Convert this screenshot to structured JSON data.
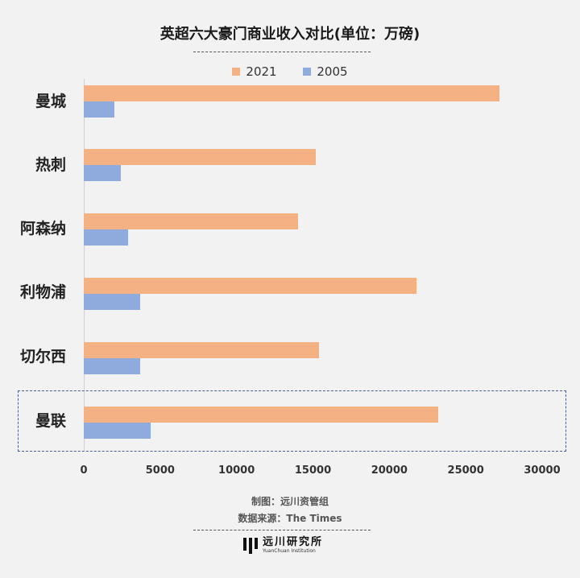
{
  "chart_data": {
    "type": "bar",
    "orientation": "horizontal",
    "title": "英超六大豪门商业收入对比(单位：万磅)",
    "categories": [
      "曼城",
      "热刺",
      "阿森纳",
      "利物浦",
      "切尔西",
      "曼联"
    ],
    "series": [
      {
        "name": "2021",
        "color": "#f4b183",
        "values": [
          27200,
          15200,
          14000,
          21800,
          15400,
          23200
        ]
      },
      {
        "name": "2005",
        "color": "#8faadc",
        "values": [
          2000,
          2400,
          2900,
          3700,
          3700,
          4400
        ]
      }
    ],
    "xlim": [
      0,
      30000
    ],
    "xticks": [
      "0",
      "5000",
      "10000",
      "15000",
      "20000",
      "25000",
      "30000"
    ],
    "highlighted_category": "曼联",
    "legend_position": "top"
  },
  "footer": {
    "credit": "制图：远川资管组",
    "source": "数据来源：The Times",
    "brand_cn": "远川研究所",
    "brand_en": "YuanChuan Institution"
  }
}
